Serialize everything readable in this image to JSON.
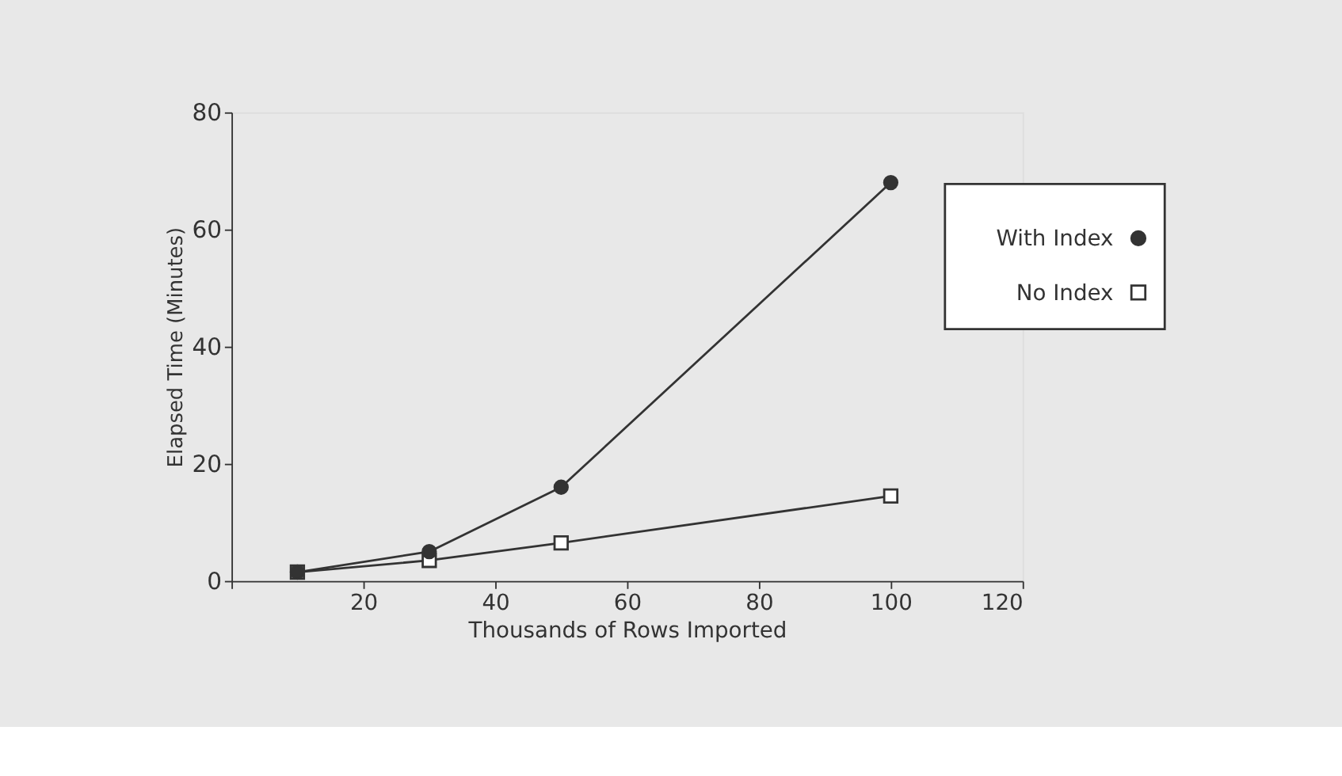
{
  "chart_data": {
    "type": "line",
    "xlabel": "Thousands of Rows Imported",
    "ylabel": "Elapsed Time (Minutes)",
    "x": [
      10,
      30,
      50,
      100
    ],
    "series": [
      {
        "name": "With Index",
        "color": "#333333",
        "values": [
          1.5,
          5,
          16,
          68
        ],
        "marker": "circle"
      },
      {
        "name": "No Index",
        "color": "#333333",
        "values": [
          1.5,
          3.5,
          6.5,
          14.5
        ],
        "marker": "square"
      }
    ],
    "xlim": [
      0,
      120
    ],
    "xticks": [
      {
        "value": 0,
        "label": null
      },
      20,
      40,
      60,
      80,
      100,
      120
    ],
    "ylim": [
      0,
      80
    ],
    "yticks": [
      0,
      20,
      40,
      60,
      80
    ],
    "grid": false,
    "legend": "top right",
    "line_style": "solid"
  }
}
